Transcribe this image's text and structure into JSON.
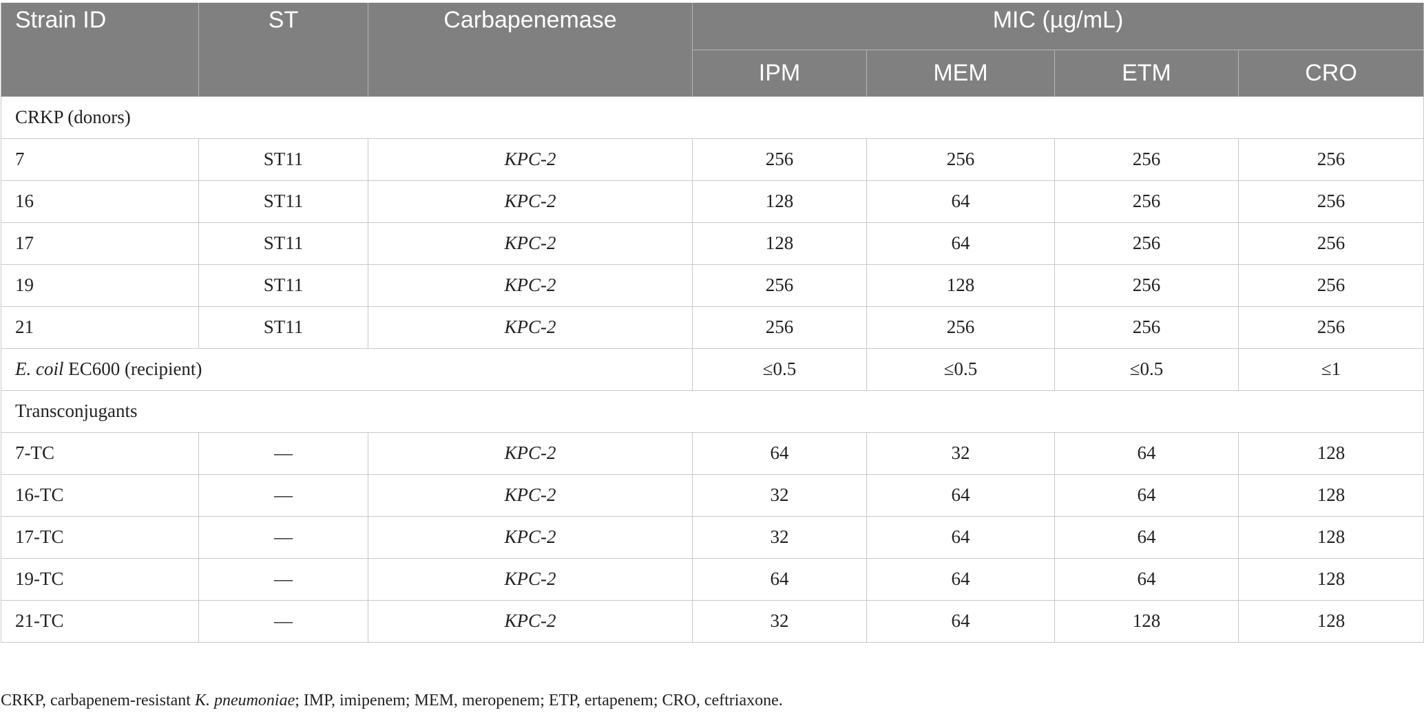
{
  "header": {
    "strain_id": "Strain ID",
    "st": "ST",
    "carbapenemase": "Carbapenemase",
    "mic_group": "MIC (µg/mL)",
    "ipm": "IPM",
    "mem": "MEM",
    "etm": "ETM",
    "cro": "CRO"
  },
  "sections": {
    "donors": "CRKP (donors)",
    "recipient_italic": "E. coil",
    "recipient_rest": " EC600 (recipient)",
    "transconjugants": "Transconjugants"
  },
  "donors": [
    {
      "id": "7",
      "st": "ST11",
      "carb": "KPC-2",
      "ipm": "256",
      "mem": "256",
      "etm": "256",
      "cro": "256"
    },
    {
      "id": "16",
      "st": "ST11",
      "carb": "KPC-2",
      "ipm": "128",
      "mem": "64",
      "etm": "256",
      "cro": "256"
    },
    {
      "id": "17",
      "st": "ST11",
      "carb": "KPC-2",
      "ipm": "128",
      "mem": "64",
      "etm": "256",
      "cro": "256"
    },
    {
      "id": "19",
      "st": "ST11",
      "carb": "KPC-2",
      "ipm": "256",
      "mem": "128",
      "etm": "256",
      "cro": "256"
    },
    {
      "id": "21",
      "st": "ST11",
      "carb": "KPC-2",
      "ipm": "256",
      "mem": "256",
      "etm": "256",
      "cro": "256"
    }
  ],
  "recipient": {
    "ipm": "≤0.5",
    "mem": "≤0.5",
    "etm": "≤0.5",
    "cro": "≤1"
  },
  "transconjugants": [
    {
      "id": "7-TC",
      "st": "—",
      "carb": "KPC-2",
      "ipm": "64",
      "mem": "32",
      "etm": "64",
      "cro": "128"
    },
    {
      "id": "16-TC",
      "st": "—",
      "carb": "KPC-2",
      "ipm": "32",
      "mem": "64",
      "etm": "64",
      "cro": "128"
    },
    {
      "id": "17-TC",
      "st": "—",
      "carb": "KPC-2",
      "ipm": "32",
      "mem": "64",
      "etm": "64",
      "cro": "128"
    },
    {
      "id": "19-TC",
      "st": "—",
      "carb": "KPC-2",
      "ipm": "64",
      "mem": "64",
      "etm": "64",
      "cro": "128"
    },
    {
      "id": "21-TC",
      "st": "—",
      "carb": "KPC-2",
      "ipm": "32",
      "mem": "64",
      "etm": "128",
      "cro": "128"
    }
  ],
  "footnote": {
    "part1": "CRKP, carbapenem-resistant ",
    "italic": "K. pneumoniae",
    "part2": "; IMP, imipenem; MEM, meropenem; ETP, ertapenem; CRO, ceftriaxone."
  }
}
